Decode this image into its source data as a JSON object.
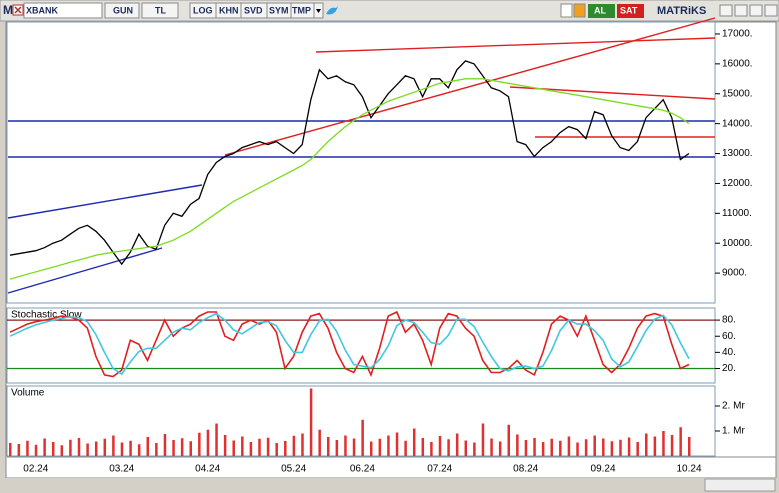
{
  "toolbar": {
    "items": [
      "M",
      "XBANK",
      "GUN",
      "TL",
      "LOG",
      "KHN",
      "SVD",
      "SYM",
      "TMP",
      "AL",
      "SAT",
      "MATRiKS"
    ]
  },
  "chart_data": [
    {
      "type": "line",
      "ylim": [
        8000,
        17400
      ],
      "yticks": [
        {
          "value": 9000,
          "label": "9000."
        },
        {
          "value": 10000,
          "label": "10000."
        },
        {
          "value": 11000,
          "label": "11000."
        },
        {
          "value": 12000,
          "label": "12000."
        },
        {
          "value": 13000,
          "label": "13000."
        },
        {
          "value": 14000,
          "label": "14000."
        },
        {
          "value": 15000,
          "label": "15000."
        },
        {
          "value": 16000,
          "label": "16000."
        },
        {
          "value": 17000,
          "label": "17000."
        }
      ],
      "grid": false,
      "series": [
        {
          "color": "#000000",
          "values": [
            9600,
            9650,
            9700,
            9750,
            9850,
            10000,
            10100,
            10300,
            10500,
            10600,
            10400,
            10100,
            9700,
            9300,
            9700,
            10300,
            9900,
            9800,
            10600,
            11000,
            10900,
            11300,
            11500,
            12300,
            12700,
            12900,
            13000,
            13200,
            13300,
            13400,
            13300,
            13400,
            13200,
            13000,
            13300,
            14800,
            15800,
            15500,
            15600,
            15400,
            15300,
            14900,
            14200,
            14600,
            15000,
            15300,
            15600,
            15500,
            14900,
            15500,
            15500,
            15200,
            15800,
            16100,
            16000,
            15600,
            15200,
            15100,
            14900,
            13400,
            13300,
            12900,
            13200,
            13400,
            13700,
            13900,
            13800,
            13500,
            14400,
            14300,
            13600,
            13200,
            13100,
            13400,
            14200,
            14500,
            14800,
            14200,
            12800,
            13000
          ]
        },
        {
          "color": "#7ddc1f",
          "values": [
            8800,
            8880,
            8960,
            9040,
            9120,
            9200,
            9280,
            9360,
            9440,
            9520,
            9600,
            9650,
            9700,
            9740,
            9780,
            9820,
            9860,
            9900,
            10000,
            10100,
            10250,
            10400,
            10600,
            10800,
            11000,
            11200,
            11400,
            11550,
            11700,
            11850,
            12000,
            12150,
            12300,
            12450,
            12600,
            12800,
            13100,
            13400,
            13650,
            13900,
            14100,
            14300,
            14450,
            14600,
            14750,
            14850,
            14950,
            15050,
            15150,
            15250,
            15350,
            15400,
            15450,
            15500,
            15500,
            15500,
            15450,
            15400,
            15350,
            15300,
            15250,
            15200,
            15150,
            15100,
            15050,
            15000,
            14950,
            14900,
            14850,
            14800,
            14750,
            14700,
            14650,
            14600,
            14550,
            14500,
            14450,
            14350,
            14200,
            14000
          ]
        }
      ]
    },
    {
      "type": "line",
      "title": "Stochastic Slow",
      "ylim": [
        2,
        95
      ],
      "yticks": [
        {
          "value": 20,
          "label": "20."
        },
        {
          "value": 40,
          "label": "40."
        },
        {
          "value": 60,
          "label": "60."
        },
        {
          "value": 80,
          "label": "80."
        }
      ],
      "grid": false,
      "hlines": [
        {
          "value": 80,
          "color": "#8b1a1a"
        },
        {
          "value": 20,
          "color": "#1a8b1a"
        }
      ],
      "series": [
        {
          "color": "#e02020",
          "values": [
            65,
            70,
            75,
            78,
            80,
            82,
            85,
            84,
            80,
            70,
            35,
            12,
            10,
            18,
            55,
            50,
            30,
            55,
            80,
            60,
            70,
            75,
            85,
            90,
            90,
            60,
            55,
            75,
            80,
            75,
            80,
            65,
            20,
            35,
            65,
            85,
            88,
            70,
            40,
            20,
            15,
            35,
            12,
            45,
            85,
            90,
            65,
            75,
            55,
            25,
            70,
            88,
            85,
            70,
            60,
            30,
            15,
            15,
            20,
            30,
            18,
            12,
            40,
            75,
            85,
            80,
            60,
            85,
            55,
            25,
            15,
            25,
            45,
            70,
            85,
            88,
            85,
            50,
            20,
            25
          ]
        },
        {
          "color": "#40c8e0",
          "values": [
            60,
            65,
            70,
            74,
            77,
            80,
            82,
            84,
            83,
            78,
            62,
            40,
            20,
            13,
            28,
            41,
            45,
            45,
            55,
            65,
            70,
            68,
            77,
            83,
            88,
            80,
            68,
            63,
            70,
            77,
            78,
            73,
            55,
            40,
            40,
            62,
            79,
            81,
            66,
            43,
            25,
            23,
            21,
            31,
            48,
            73,
            80,
            77,
            65,
            52,
            50,
            61,
            81,
            81,
            72,
            53,
            35,
            20,
            17,
            22,
            23,
            20,
            23,
            42,
            67,
            80,
            75,
            75,
            67,
            55,
            32,
            22,
            28,
            47,
            67,
            81,
            86,
            74,
            52,
            32
          ]
        }
      ]
    },
    {
      "type": "bar",
      "title": "Volume",
      "color": "#e03030",
      "ylim": [
        0,
        2800000
      ],
      "yticks": [
        {
          "value": 1000000,
          "label": "1. Mr"
        },
        {
          "value": 2000000,
          "label": "2. Mr"
        }
      ],
      "grid": false,
      "categories": [
        null,
        null,
        null,
        "02.24",
        null,
        null,
        null,
        null,
        null,
        null,
        null,
        null,
        null,
        "03.24",
        null,
        null,
        null,
        null,
        null,
        null,
        null,
        null,
        null,
        "04.24",
        null,
        null,
        null,
        null,
        null,
        null,
        null,
        null,
        null,
        "05.24",
        null,
        null,
        null,
        null,
        null,
        null,
        null,
        "06.24",
        null,
        null,
        null,
        null,
        null,
        null,
        null,
        null,
        "07.24",
        null,
        null,
        null,
        null,
        null,
        null,
        null,
        null,
        null,
        "08.24",
        null,
        null,
        null,
        null,
        null,
        null,
        null,
        null,
        "09.24",
        null,
        null,
        null,
        null,
        null,
        null,
        null,
        null,
        null,
        "10.24"
      ],
      "values": [
        520000,
        480000,
        610000,
        450000,
        700000,
        560000,
        430000,
        650000,
        720000,
        500000,
        580000,
        690000,
        820000,
        540000,
        610000,
        470000,
        760000,
        520000,
        880000,
        640000,
        710000,
        590000,
        930000,
        1050000,
        1300000,
        840000,
        620000,
        780000,
        560000,
        690000,
        730000,
        520000,
        600000,
        810000,
        900000,
        2700000,
        1050000,
        760000,
        640000,
        820000,
        700000,
        1450000,
        580000,
        690000,
        820000,
        940000,
        610000,
        1100000,
        720000,
        560000,
        800000,
        670000,
        900000,
        620000,
        540000,
        1300000,
        700000,
        580000,
        1250000,
        860000,
        640000,
        720000,
        560000,
        690000,
        610000,
        780000,
        540000,
        670000,
        820000,
        700000,
        590000,
        650000,
        740000,
        560000,
        900000,
        780000,
        1000000,
        840000,
        1150000,
        760000
      ]
    }
  ]
}
